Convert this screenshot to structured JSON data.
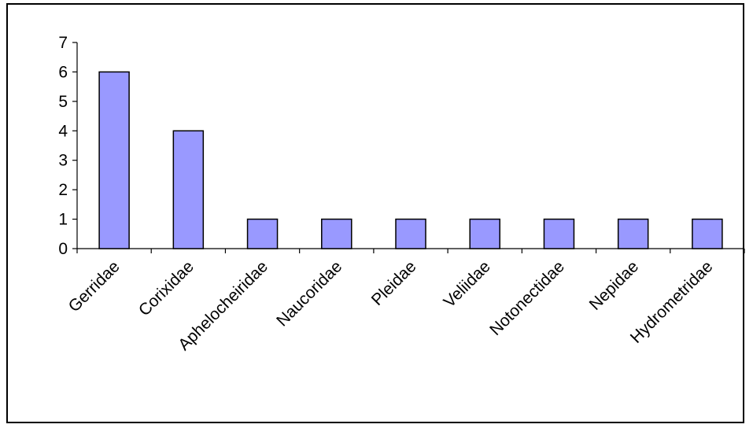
{
  "chart_data": {
    "type": "bar",
    "categories": [
      "Gerridae",
      "Corixidae",
      "Aphelocheiridae",
      "Naucoridae",
      "Pleidae",
      "Veliidae",
      "Notonectidae",
      "Nepidae",
      "Hydrometridae"
    ],
    "values": [
      6,
      4,
      1,
      1,
      1,
      1,
      1,
      1,
      1
    ],
    "ylim": [
      0,
      7
    ],
    "yticks": [
      "0",
      "1",
      "2",
      "3",
      "4",
      "5",
      "6",
      "7"
    ],
    "title": "",
    "xlabel": "",
    "ylabel": "",
    "grid": false,
    "legend": "none",
    "bar_color": "#9999ff",
    "bar_edge_color": "#000000"
  }
}
